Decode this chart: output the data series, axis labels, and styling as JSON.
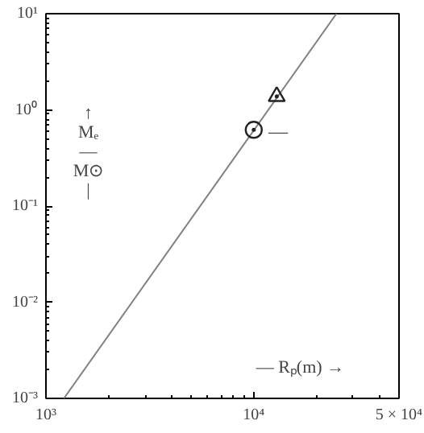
{
  "chart_data": {
    "type": "line",
    "xlabel": "— Rₚ(m) →",
    "ylabel": "↑\nMₑ\n—\nM⊙\n|",
    "log": "xy",
    "grid": false,
    "xlim": [
      1000,
      50000
    ],
    "ylim": [
      0.001,
      10
    ],
    "xticks": [
      {
        "value": 1000,
        "label": "10³"
      },
      {
        "value": 10000,
        "label": "10⁴"
      },
      {
        "value": 50000,
        "label": "5 × 10⁴"
      }
    ],
    "yticks": [
      {
        "value": 0.001,
        "label": "10⁻³"
      },
      {
        "value": 0.01,
        "label": "10⁻²"
      },
      {
        "value": 0.1,
        "label": "10⁻¹"
      },
      {
        "value": 1,
        "label": "10⁰"
      },
      {
        "value": 10,
        "label": "10¹"
      }
    ],
    "series": [
      {
        "color": "#808080",
        "x": [
          1220,
          25000
        ],
        "values": [
          0.001,
          10
        ],
        "marker": "none"
      },
      {
        "type": "scatter",
        "color": "#222222",
        "x": [
          10000
        ],
        "values": [
          0.62
        ],
        "marker": "circle"
      },
      {
        "type": "scatter",
        "color": "#222222",
        "x": [
          12900
        ],
        "values": [
          1.38
        ],
        "marker": "triangle"
      }
    ],
    "annotations": [
      "—"
    ]
  }
}
